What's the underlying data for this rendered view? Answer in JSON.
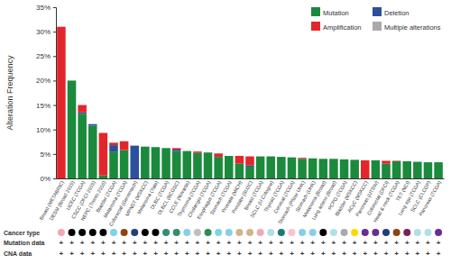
{
  "chart_data": {
    "type": "bar",
    "stacked": true,
    "legend": "upper right",
    "grid": false,
    "y_label": "Alteration Frequency",
    "categories": [
      "Breast (METABRIC)",
      "DESM (Broad 2015)",
      "UCEC (TCGA)",
      "CSCC (DFCI 2015)",
      "NEPC (Trento 2016)",
      "Bladder (TCGA)",
      "Melanoma (TCGA)",
      "Colorectal (Genentech)",
      "MPNST (MSKCC)",
      "Melanoma (Yale)",
      "DLBC (TCGA)",
      "DLBCL (BCGSC)",
      "CCLE (Novartis)",
      "Thymoma (TCGA)",
      "Cholangio (TCGA)",
      "Esophagus (TCGA)",
      "Stomach (TCGA)",
      "Prostate (MICH)",
      "Prostate (SU2C)",
      "Breast (TCGA)",
      "SCLC (U Cologne)",
      "Thyroid (TCGA)",
      "Cervical (TCGA)",
      "Stomach (Pfizer UHK)",
      "Stomach (UHK)",
      "Melanoma (Broad)",
      "Lung adeno (Broad)",
      "PCPG (TCGA)",
      "Bladder (MSKCC)",
      "ACyC (MSKCC)",
      "Pancreas (UTSW)",
      "Colorectal (DFCI)",
      "Head & neck (TCGA)",
      "TET (NCI)",
      "Lung squ (TCGA)",
      "SCLC (CLCGP)",
      "Pancreas (TCGA)"
    ],
    "series": [
      {
        "name": "Mutation",
        "color": "#1b8a3c",
        "values": [
          0,
          20,
          13.2,
          10.8,
          0.6,
          5.5,
          5.8,
          0,
          6.5,
          6.4,
          6.2,
          5.6,
          5.6,
          5.2,
          5.3,
          4.4,
          4.6,
          3.0,
          2.4,
          4.5,
          4.5,
          4.4,
          4.3,
          4.0,
          4.1,
          4.0,
          4.0,
          3.9,
          3.8,
          0,
          3.7,
          3.0,
          3.5,
          3.5,
          3.4,
          3.3,
          3.3
        ]
      },
      {
        "name": "Deletion",
        "color": "#2c4f9e",
        "values": [
          0,
          0,
          0.3,
          0.3,
          0,
          1.3,
          0,
          6.7,
          0,
          0,
          0,
          0.3,
          0,
          0,
          0,
          0,
          0,
          0,
          0.3,
          0,
          0,
          0,
          0,
          0,
          0,
          0,
          0,
          0,
          0,
          0,
          0,
          0,
          0,
          0,
          0,
          0,
          0
        ]
      },
      {
        "name": "Amplification",
        "color": "#e3262b",
        "values": [
          31,
          0,
          1.5,
          0,
          8.7,
          0.5,
          1.8,
          0,
          0,
          0,
          0,
          0.3,
          0,
          0.3,
          0,
          0.7,
          0,
          1.6,
          1.8,
          0,
          0,
          0,
          0,
          0.2,
          0,
          0,
          0,
          0,
          0,
          3.7,
          0,
          0.6,
          0.1,
          0,
          0,
          0,
          0
        ]
      },
      {
        "name": "Multiple alterations",
        "color": "#aaaaaa",
        "values": [
          0,
          0,
          0,
          0,
          0,
          0,
          0,
          0,
          0,
          0,
          0,
          0,
          0,
          0,
          0,
          0,
          0,
          0,
          0,
          0,
          0,
          0,
          0,
          0,
          0,
          0,
          0,
          0,
          0,
          0,
          0,
          0,
          0,
          0,
          0,
          0,
          0
        ]
      }
    ],
    "ylim": [
      0,
      35
    ],
    "yticks": [
      {
        "value": 0,
        "label": "0%"
      },
      {
        "value": 5,
        "label": "5%"
      },
      {
        "value": 10,
        "label": "10%"
      },
      {
        "value": 15,
        "label": "15%"
      },
      {
        "value": 20,
        "label": "20%"
      },
      {
        "value": 25,
        "label": "25%"
      },
      {
        "value": 30,
        "label": "30%"
      },
      {
        "value": 35,
        "label": "35%"
      }
    ],
    "row_labels": [
      "Cancer type",
      "Mutation data",
      "CNA data"
    ],
    "mutation_data": [
      "+",
      "+",
      "+",
      "+",
      "+",
      "+",
      "+",
      "+",
      "+",
      "+",
      "+",
      "+",
      "+",
      "+",
      "+",
      "+",
      "+",
      "+",
      "+",
      "+",
      "+",
      "+",
      "+",
      "+",
      "+",
      "+",
      "+",
      "+",
      "+",
      "+",
      "+",
      "+",
      "+",
      "+",
      "+",
      "+",
      "+"
    ],
    "cna_data": [
      "+",
      "+",
      "+",
      "+",
      "+",
      "+",
      "+",
      "+",
      "+",
      "+",
      "+",
      "+",
      "+",
      "+",
      "+",
      "+",
      "+",
      "+",
      "+",
      "+",
      "+",
      "+",
      "+",
      "+",
      "+",
      "+",
      "+",
      "+",
      "+",
      "+",
      "+",
      "+",
      "+",
      "+",
      "+",
      "+",
      "+"
    ]
  }
}
